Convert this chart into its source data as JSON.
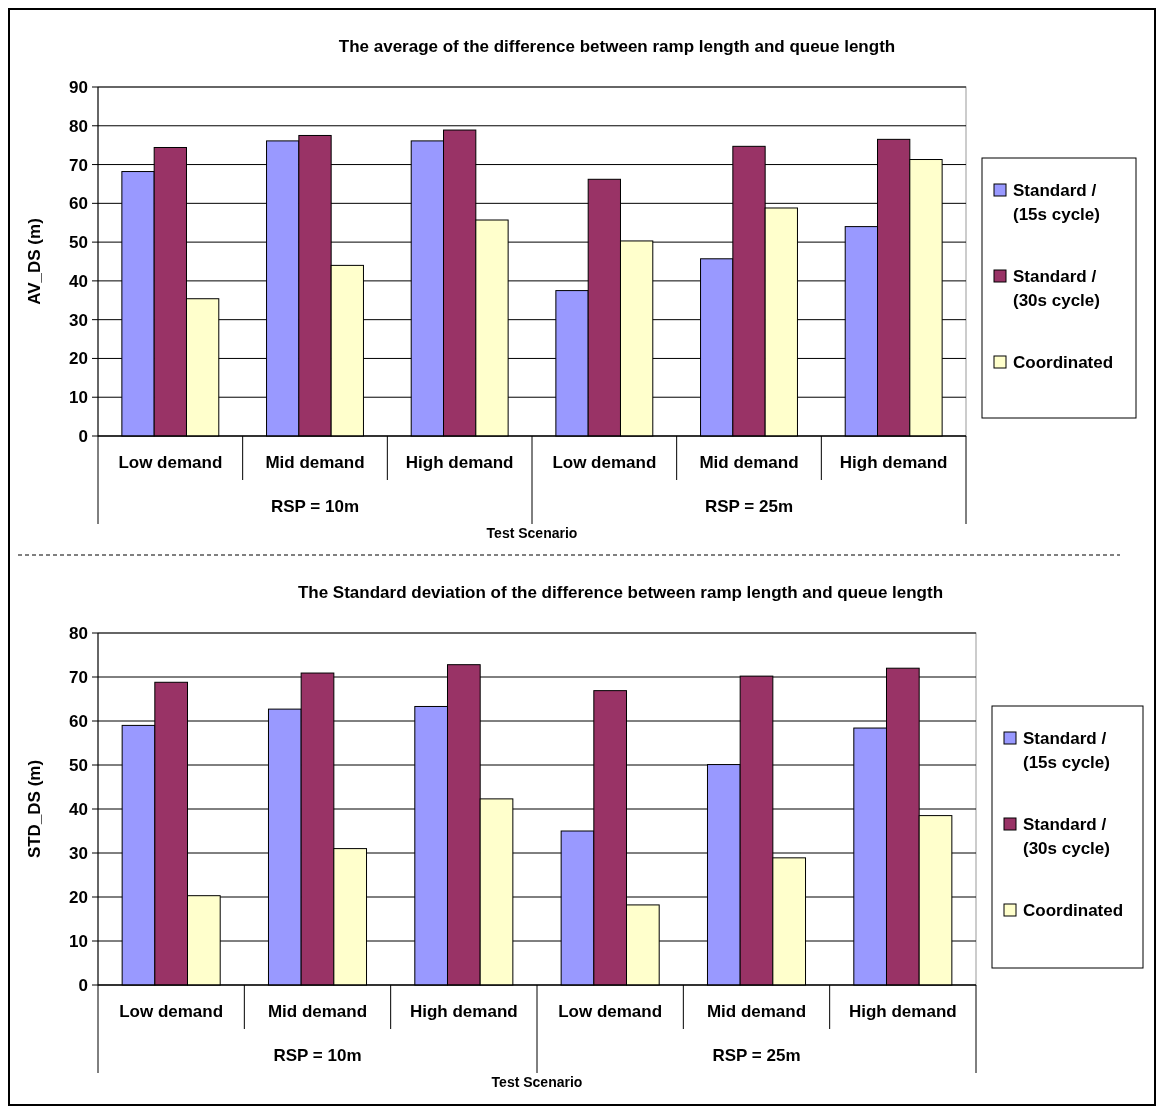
{
  "chart_data": [
    {
      "type": "bar",
      "title": "The average of the difference between ramp length and queue length",
      "xlabel": "Test Scenario",
      "ylabel": "AV_DS (m)",
      "categories": [
        "Low demand",
        "Mid demand",
        "High demand",
        "Low demand",
        "Mid demand",
        "High demand"
      ],
      "annotations": [
        "RSP = 10m",
        "RSP = 25m"
      ],
      "series": [
        {
          "name": "Standard / (15s cycle)",
          "color": "#9999ff",
          "values": [
            68.2,
            76.1,
            76.1,
            37.5,
            45.7,
            54
          ]
        },
        {
          "name": "Standard / (30s cycle)",
          "color": "#993366",
          "values": [
            74.4,
            77.5,
            78.9,
            66.2,
            74.7,
            76.5
          ]
        },
        {
          "name": "Coordinated",
          "color": "#ffffcc",
          "values": [
            35.4,
            44,
            55.7,
            50.3,
            58.8,
            71.3
          ]
        }
      ],
      "ylim": [
        0,
        90
      ],
      "yticks": [
        0,
        10,
        20,
        30,
        40,
        50,
        60,
        70,
        80,
        90
      ],
      "grid": "y",
      "legend": "right"
    },
    {
      "type": "bar",
      "title": "The Standard deviation of the difference between ramp length and queue length",
      "xlabel": "Test Scenario",
      "ylabel": "STD_DS (m)",
      "categories": [
        "Low demand",
        "Mid demand",
        "High demand",
        "Low demand",
        "Mid demand",
        "High demand"
      ],
      "annotations": [
        "RSP = 10m",
        "RSP = 25m"
      ],
      "series": [
        {
          "name": "Standard / (15s cycle)",
          "color": "#9999ff",
          "values": [
            59,
            62.7,
            63.3,
            35,
            50.1,
            58.4
          ]
        },
        {
          "name": "Standard / (30s cycle)",
          "color": "#993366",
          "values": [
            68.8,
            70.9,
            72.8,
            66.9,
            70.2,
            72
          ]
        },
        {
          "name": "Coordinated",
          "color": "#ffffcc",
          "values": [
            20.3,
            31,
            42.3,
            18.2,
            28.9,
            38.5
          ]
        }
      ],
      "ylim": [
        0,
        80
      ],
      "yticks": [
        0,
        10,
        20,
        30,
        40,
        50,
        60,
        70,
        80
      ],
      "grid": "y",
      "legend": "right"
    }
  ]
}
